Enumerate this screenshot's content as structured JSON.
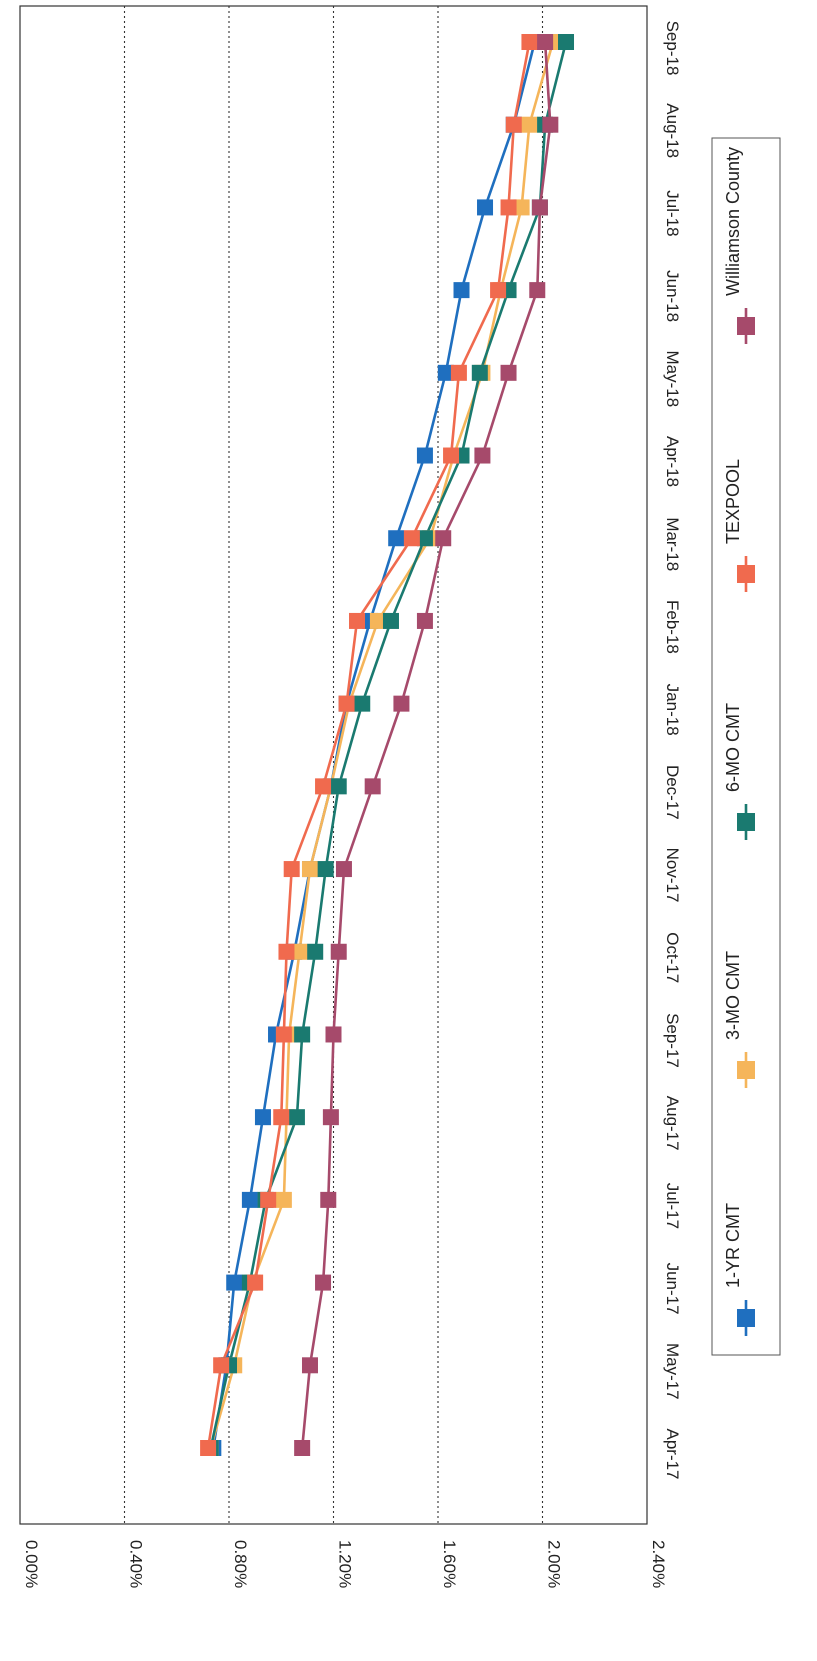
{
  "chart_data": {
    "type": "line",
    "orientation": "rotated-90-clockwise",
    "title": "",
    "xlabel": "",
    "ylabel": "",
    "x": [
      "Apr-17",
      "May-17",
      "Jun-17",
      "Jul-17",
      "Aug-17",
      "Sep-17",
      "Oct-17",
      "Nov-17",
      "Dec-17",
      "Jan-18",
      "Feb-18",
      "Mar-18",
      "Apr-18",
      "May-18",
      "Jun-18",
      "Jul-18",
      "Aug-18",
      "Sep-18"
    ],
    "ylim": [
      0,
      2.4
    ],
    "yticks": [
      {
        "value": 0.0,
        "label": "0.00%"
      },
      {
        "value": 0.4,
        "label": "0.40%"
      },
      {
        "value": 0.8,
        "label": "0.80%"
      },
      {
        "value": 1.2,
        "label": "1.20%"
      },
      {
        "value": 1.6,
        "label": "1.60%"
      },
      {
        "value": 2.0,
        "label": "2.00%"
      },
      {
        "value": 2.4,
        "label": "2.40%"
      }
    ],
    "grid": true,
    "legend_position": "bottom",
    "series": [
      {
        "name": "1-YR CMT",
        "color": "#1f6fbf",
        "values": [
          0.74,
          0.79,
          0.82,
          0.88,
          0.93,
          0.98,
          1.05,
          1.11,
          1.19,
          1.25,
          1.34,
          1.44,
          1.55,
          1.63,
          1.69,
          1.78,
          1.89,
          1.97
        ]
      },
      {
        "name": "3-MO CMT",
        "color": "#f5b55a",
        "values": [
          0.73,
          0.82,
          0.89,
          1.01,
          1.02,
          1.03,
          1.07,
          1.11,
          1.19,
          1.26,
          1.37,
          1.57,
          1.66,
          1.77,
          1.84,
          1.92,
          1.95,
          2.04
        ]
      },
      {
        "name": "6-MO CMT",
        "color": "#1a7a70",
        "values": [
          0.73,
          0.8,
          0.88,
          0.94,
          1.06,
          1.08,
          1.13,
          1.17,
          1.22,
          1.31,
          1.42,
          1.55,
          1.69,
          1.76,
          1.87,
          1.99,
          2.01,
          2.09
        ]
      },
      {
        "name": "TEXPOOL",
        "color": "#f06a4e",
        "values": [
          0.72,
          0.77,
          0.9,
          0.95,
          1.0,
          1.01,
          1.02,
          1.04,
          1.16,
          1.25,
          1.29,
          1.5,
          1.65,
          1.68,
          1.83,
          1.87,
          1.89,
          1.95
        ]
      },
      {
        "name": "Williamson County",
        "color": "#a64a6b",
        "values": [
          1.08,
          1.11,
          1.16,
          1.18,
          1.19,
          1.2,
          1.22,
          1.24,
          1.35,
          1.46,
          1.55,
          1.62,
          1.77,
          1.87,
          1.98,
          1.99,
          2.03,
          2.01
        ]
      }
    ]
  }
}
